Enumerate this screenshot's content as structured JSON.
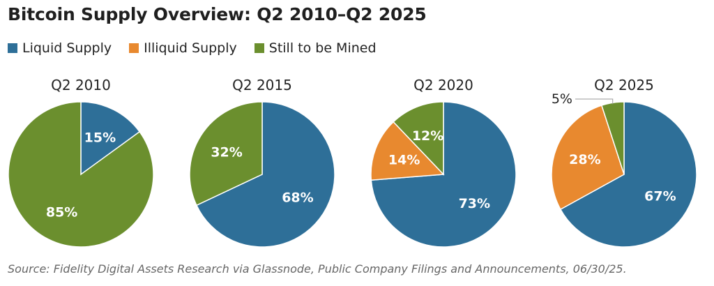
{
  "title": "Bitcoin Supply Overview: Q2 2010–Q2 2025",
  "legend": [
    {
      "label": "Liquid Supply",
      "color": "#2e6f98"
    },
    {
      "label": "Illiquid Supply",
      "color": "#e8892f"
    },
    {
      "label": "Still to be Mined",
      "color": "#6b8f2e"
    }
  ],
  "source": "Source: Fidelity Digital Assets Research via Glassnode, Public Company Filings and Announcements, 06/30/25.",
  "chart_data": [
    {
      "type": "pie",
      "title": "Q2 2010",
      "slices": [
        {
          "name": "Liquid Supply",
          "value": 15,
          "label": "15%"
        },
        {
          "name": "Illiquid Supply",
          "value": 0,
          "label": ""
        },
        {
          "name": "Still to be Mined",
          "value": 85,
          "label": "85%"
        }
      ]
    },
    {
      "type": "pie",
      "title": "Q2 2015",
      "slices": [
        {
          "name": "Liquid Supply",
          "value": 68,
          "label": "68%"
        },
        {
          "name": "Illiquid Supply",
          "value": 0,
          "label": ""
        },
        {
          "name": "Still to be Mined",
          "value": 32,
          "label": "32%"
        }
      ]
    },
    {
      "type": "pie",
      "title": "Q2 2020",
      "slices": [
        {
          "name": "Liquid Supply",
          "value": 73,
          "label": "73%"
        },
        {
          "name": "Illiquid Supply",
          "value": 14,
          "label": "14%"
        },
        {
          "name": "Still to be Mined",
          "value": 12,
          "label": "12%"
        }
      ]
    },
    {
      "type": "pie",
      "title": "Q2 2025",
      "slices": [
        {
          "name": "Liquid Supply",
          "value": 67,
          "label": "67%"
        },
        {
          "name": "Illiquid Supply",
          "value": 28,
          "label": "28%"
        },
        {
          "name": "Still to be Mined",
          "value": 5,
          "label": "5%",
          "callout": true
        }
      ]
    }
  ]
}
